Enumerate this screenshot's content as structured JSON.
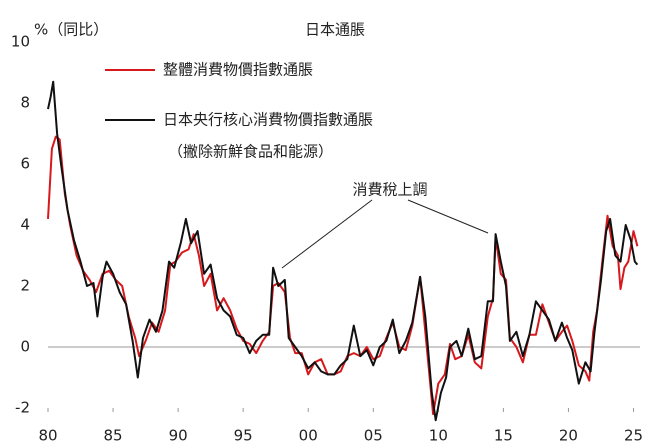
{
  "chart_data": {
    "type": "line",
    "title": "日本通脹",
    "y_label": "%（同比）",
    "annotation": "消費稅上調",
    "legend_note": "（撇除新鮮食品和能源）",
    "xlim": [
      1980,
      2025.5
    ],
    "xticks": [
      {
        "value": 1980,
        "label": "80"
      },
      {
        "value": 1985,
        "label": "85"
      },
      {
        "value": 1990,
        "label": "90"
      },
      {
        "value": 1995,
        "label": "95"
      },
      {
        "value": 2000,
        "label": "00"
      },
      {
        "value": 2005,
        "label": "05"
      },
      {
        "value": 2010,
        "label": "10"
      },
      {
        "value": 2015,
        "label": "15"
      },
      {
        "value": 2020,
        "label": "20"
      },
      {
        "value": 2025,
        "label": "25"
      }
    ],
    "ylim": [
      -2,
      10
    ],
    "yticks": [
      -2,
      0,
      2,
      4,
      6,
      8,
      10
    ],
    "series": [
      {
        "name": "整體消費物價指數通脹",
        "color": "#d7191c",
        "x": [
          1980.0,
          1980.3,
          1980.6,
          1980.9,
          1981.3,
          1981.7,
          1982.2,
          1982.7,
          1983.2,
          1983.7,
          1984.2,
          1984.7,
          1985.2,
          1985.7,
          1986.2,
          1986.7,
          1987.0,
          1987.5,
          1988.0,
          1988.5,
          1989.0,
          1989.4,
          1989.8,
          1990.3,
          1990.8,
          1991.2,
          1991.6,
          1992.0,
          1992.5,
          1993.0,
          1993.5,
          1994.0,
          1994.5,
          1995.0,
          1995.5,
          1996.0,
          1996.5,
          1997.0,
          1997.3,
          1997.7,
          1998.2,
          1998.6,
          1999.0,
          1999.5,
          2000.0,
          2000.5,
          2001.0,
          2001.5,
          2002.0,
          2002.5,
          2003.0,
          2003.5,
          2004.0,
          2004.5,
          2005.0,
          2005.5,
          2006.0,
          2006.5,
          2007.0,
          2007.5,
          2008.0,
          2008.6,
          2009.0,
          2009.6,
          2010.0,
          2010.5,
          2010.9,
          2011.3,
          2011.8,
          2012.3,
          2012.8,
          2013.3,
          2013.8,
          2014.2,
          2014.4,
          2014.8,
          2015.2,
          2015.5,
          2016.0,
          2016.5,
          2017.0,
          2017.5,
          2018.0,
          2018.5,
          2019.0,
          2019.5,
          2019.9,
          2020.3,
          2020.8,
          2021.3,
          2021.6,
          2021.9,
          2022.2,
          2022.6,
          2023.0,
          2023.4,
          2023.8,
          2024.0,
          2024.3,
          2024.6,
          2025.0,
          2025.3
        ],
        "values": [
          4.2,
          6.5,
          6.9,
          6.8,
          5.0,
          4.0,
          3.0,
          2.5,
          2.2,
          1.8,
          2.4,
          2.5,
          2.2,
          2.0,
          1.0,
          0.3,
          -0.3,
          0.2,
          0.8,
          0.5,
          1.2,
          2.7,
          2.8,
          3.1,
          3.2,
          3.7,
          3.0,
          2.0,
          2.4,
          1.2,
          1.6,
          1.2,
          0.6,
          0.2,
          0.1,
          -0.2,
          0.2,
          0.5,
          2.0,
          2.1,
          1.8,
          0.3,
          -0.2,
          -0.2,
          -0.9,
          -0.5,
          -0.4,
          -0.9,
          -0.9,
          -0.8,
          -0.3,
          -0.2,
          -0.3,
          0.0,
          -0.4,
          -0.3,
          0.3,
          0.8,
          0.0,
          -0.1,
          0.7,
          2.3,
          0.5,
          -2.2,
          -1.2,
          -0.9,
          0.1,
          -0.4,
          -0.3,
          0.4,
          -0.5,
          -0.7,
          1.0,
          1.6,
          3.6,
          2.4,
          2.2,
          0.3,
          0.0,
          -0.5,
          0.4,
          0.4,
          1.4,
          0.8,
          0.2,
          0.5,
          0.7,
          0.2,
          -0.6,
          -0.8,
          -1.1,
          0.5,
          1.2,
          2.8,
          4.3,
          3.3,
          3.0,
          1.9,
          2.6,
          2.8,
          3.8,
          3.3
        ]
      },
      {
        "name": "日本央行核心消費物價指數通脹",
        "color": "#111111",
        "x": [
          1980.0,
          1980.2,
          1980.4,
          1980.7,
          1981.0,
          1981.5,
          1982.0,
          1982.5,
          1983.0,
          1983.5,
          1983.8,
          1984.2,
          1984.5,
          1985.0,
          1985.5,
          1986.0,
          1986.5,
          1986.9,
          1987.3,
          1987.8,
          1988.3,
          1988.8,
          1989.3,
          1989.7,
          1990.2,
          1990.6,
          1991.0,
          1991.5,
          1992.0,
          1992.5,
          1993.0,
          1993.5,
          1994.0,
          1994.5,
          1995.0,
          1995.5,
          1996.0,
          1996.5,
          1997.0,
          1997.3,
          1997.7,
          1998.2,
          1998.5,
          1999.0,
          1999.5,
          2000.0,
          2000.5,
          2001.0,
          2001.5,
          2002.0,
          2002.5,
          2003.0,
          2003.5,
          2004.0,
          2004.5,
          2005.0,
          2005.5,
          2006.0,
          2006.5,
          2007.0,
          2007.5,
          2008.0,
          2008.6,
          2009.0,
          2009.5,
          2009.8,
          2010.2,
          2010.6,
          2010.9,
          2011.4,
          2011.8,
          2012.3,
          2012.8,
          2013.3,
          2013.8,
          2014.2,
          2014.4,
          2014.8,
          2015.2,
          2015.5,
          2016.0,
          2016.5,
          2017.0,
          2017.5,
          2018.0,
          2018.5,
          2019.0,
          2019.5,
          2019.9,
          2020.3,
          2020.8,
          2021.3,
          2021.7,
          2022.0,
          2022.5,
          2022.9,
          2023.2,
          2023.6,
          2024.0,
          2024.4,
          2024.8,
          2025.1,
          2025.3
        ],
        "values": [
          7.8,
          8.2,
          8.7,
          7.0,
          6.0,
          4.5,
          3.5,
          2.8,
          2.0,
          2.1,
          1.0,
          2.3,
          2.8,
          2.4,
          1.8,
          1.4,
          0.2,
          -1.0,
          0.3,
          0.9,
          0.5,
          1.2,
          2.8,
          2.6,
          3.4,
          4.2,
          3.4,
          3.8,
          2.4,
          2.7,
          1.6,
          1.2,
          1.0,
          0.4,
          0.3,
          -0.2,
          0.2,
          0.4,
          0.4,
          2.6,
          2.0,
          2.2,
          0.3,
          0.0,
          -0.3,
          -0.7,
          -0.5,
          -0.8,
          -0.9,
          -0.9,
          -0.6,
          -0.4,
          0.7,
          -0.3,
          -0.1,
          -0.6,
          0.0,
          0.2,
          0.9,
          -0.2,
          0.2,
          0.8,
          2.3,
          1.0,
          -1.5,
          -2.4,
          -1.5,
          -1.0,
          0.0,
          0.2,
          -0.3,
          0.6,
          -0.4,
          -0.3,
          1.5,
          1.5,
          3.7,
          2.8,
          2.0,
          0.2,
          0.5,
          -0.3,
          0.4,
          1.5,
          1.2,
          0.9,
          0.2,
          0.8,
          0.3,
          -0.1,
          -1.2,
          -0.5,
          -0.8,
          0.5,
          2.2,
          3.8,
          4.2,
          3.0,
          2.8,
          4.0,
          3.5,
          2.8,
          2.7
        ]
      }
    ]
  }
}
